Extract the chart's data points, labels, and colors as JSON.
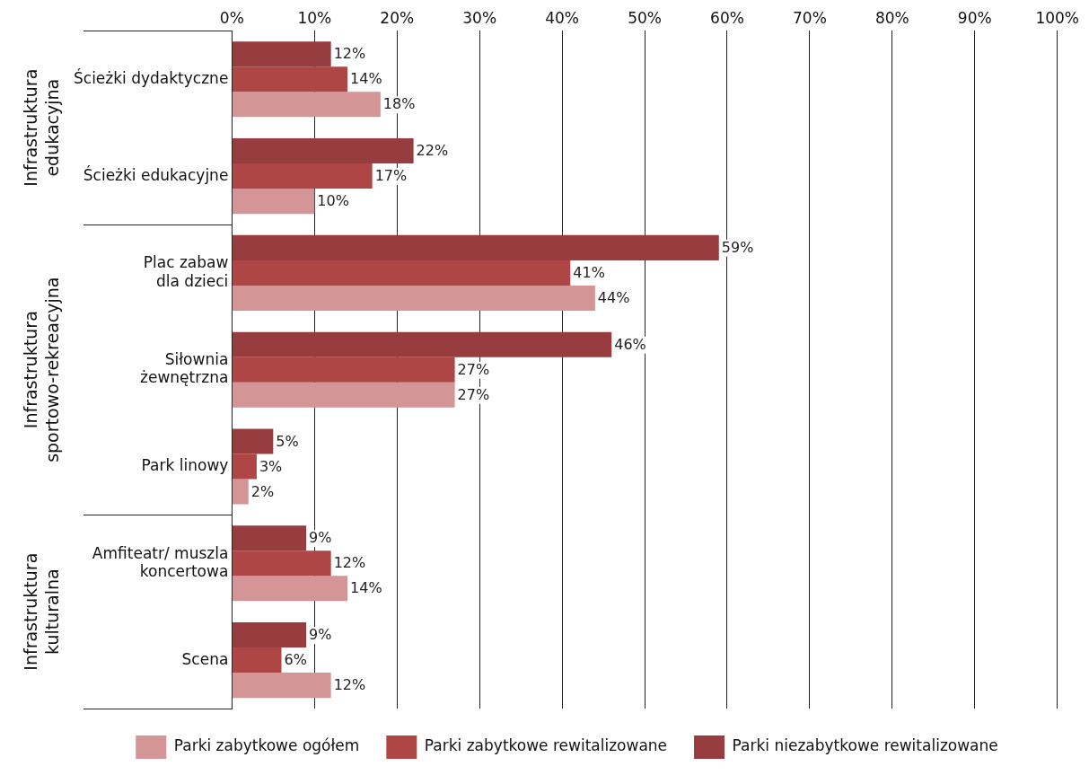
{
  "chart_data": {
    "type": "bar",
    "orientation": "horizontal",
    "categories": [
      "Ścieżki dydaktyczne",
      "Ścieżki edukacyjne",
      "Plac zabaw\ndla dzieci",
      "Siłownia\nżewnętrzna",
      "Park linowy",
      "Amfiteatr/ muszla\nkoncertowa",
      "Scena"
    ],
    "series": [
      {
        "name": "Parki zabytkowe ogółem",
        "color": "#d39595",
        "values": [
          18,
          10,
          44,
          27,
          2,
          14,
          12
        ],
        "value_labels": [
          "18%",
          "10%",
          "44%",
          "27%",
          "2%",
          "14%",
          "12%"
        ]
      },
      {
        "name": "Parki zabytkowe rewitalizowane",
        "color": "#ae4646",
        "values": [
          14,
          17,
          41,
          27,
          3,
          12,
          6
        ],
        "value_labels": [
          "14%",
          "17%",
          "41%",
          "27%",
          "3%",
          "12%",
          "6%"
        ]
      },
      {
        "name": "Parki niezabytkowe rewitalizowane",
        "color": "#973c3f",
        "values": [
          12,
          22,
          59,
          46,
          5,
          9,
          9
        ],
        "value_labels": [
          "12%",
          "22%",
          "59%",
          "46%",
          "5%",
          "9%",
          "9%"
        ]
      }
    ],
    "xlim": [
      0,
      100
    ],
    "xticks": [
      {
        "value": 0,
        "label": "0%"
      },
      {
        "value": 10,
        "label": "10%"
      },
      {
        "value": 20,
        "label": "20%"
      },
      {
        "value": 30,
        "label": "30%"
      },
      {
        "value": 40,
        "label": "40%"
      },
      {
        "value": 50,
        "label": "50%"
      },
      {
        "value": 60,
        "label": "60%"
      },
      {
        "value": 70,
        "label": "70%"
      },
      {
        "value": 80,
        "label": "80%"
      },
      {
        "value": 90,
        "label": "90%"
      },
      {
        "value": 100,
        "label": "100%"
      }
    ],
    "annotations": [
      "Infrastruktura\nedukacyjna",
      "Infrastruktura\nsportowo-rekreacyjna",
      "Infrastruktura\nkulturalna"
    ],
    "grid": "x",
    "legend": "bottom"
  }
}
